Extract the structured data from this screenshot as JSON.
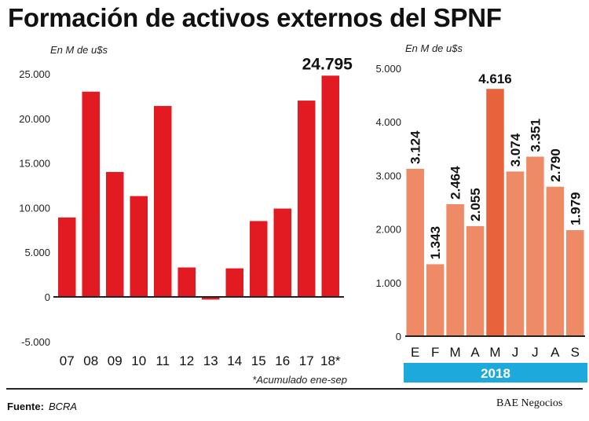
{
  "title": "Formación de activos externos del SPNF",
  "footer": {
    "source_label": "Fuente:",
    "source_value": "BCRA",
    "brand": "BAE Negocios"
  },
  "colors": {
    "left_bars": "#e21a22",
    "right_bars": "#ee8a66",
    "right_bars_highlight": "#e8623c",
    "year_band": "#1ea9dc",
    "axis": "#222222"
  },
  "chart_data": [
    {
      "type": "bar",
      "unit_label": "En M de u$s",
      "categories": [
        "07",
        "08",
        "09",
        "10",
        "11",
        "12",
        "13",
        "14",
        "15",
        "16",
        "17",
        "18*"
      ],
      "values": [
        8900,
        23000,
        14000,
        11300,
        21400,
        3300,
        -300,
        3200,
        8500,
        9900,
        22000,
        24795
      ],
      "ylim": [
        -5000,
        25000
      ],
      "yticks": [
        -5000,
        0,
        5000,
        10000,
        15000,
        20000,
        25000
      ],
      "ytick_labels": [
        "-5.000",
        "0",
        "5.000",
        "10.000",
        "15.000",
        "20.000",
        "25.000"
      ],
      "highlight_label": "24.795",
      "note": "*Acumulado ene-sep"
    },
    {
      "type": "bar",
      "unit_label": "En M de u$s",
      "categories": [
        "E",
        "F",
        "M",
        "A",
        "M",
        "J",
        "J",
        "A",
        "S"
      ],
      "values": [
        3124,
        1343,
        2464,
        2055,
        4616,
        3074,
        3351,
        2790,
        1979
      ],
      "value_labels": [
        "3.124",
        "1.343",
        "2.464",
        "2.055",
        "4.616",
        "3.074",
        "3.351",
        "2.790",
        "1.979"
      ],
      "ylim": [
        0,
        5000
      ],
      "yticks": [
        0,
        1000,
        2000,
        3000,
        4000,
        5000
      ],
      "ytick_labels": [
        "0",
        "1.000",
        "2.000",
        "3.000",
        "4.000",
        "5.000"
      ],
      "group_label": "2018"
    }
  ]
}
